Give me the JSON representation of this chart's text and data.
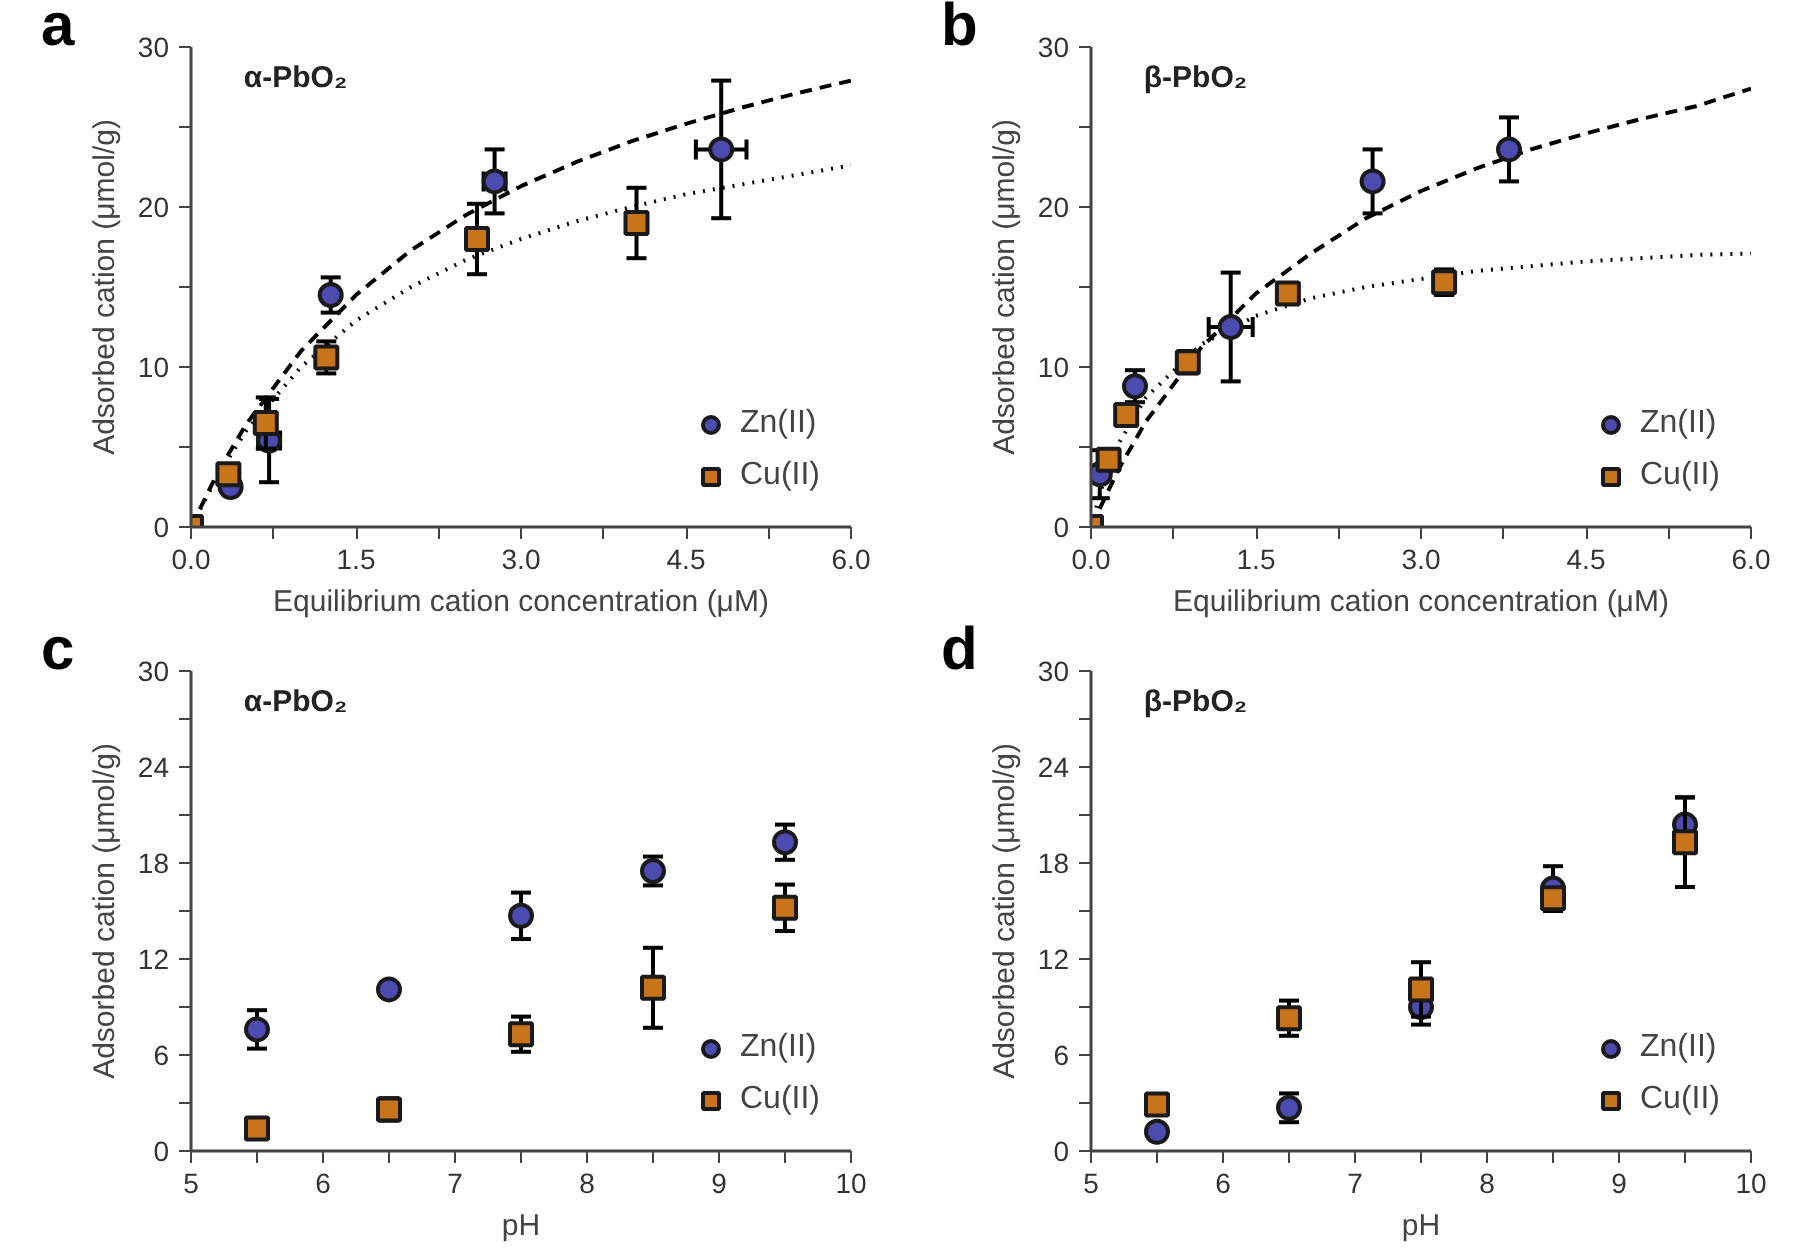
{
  "chart_data": [
    {
      "type": "scatter",
      "title": "α-PbO₂",
      "annotations": [
        "a"
      ],
      "xlabel": "Equilibrium cation concentration (μM)",
      "ylabel": "Adsorbed cation (μmol/g)",
      "xlim": [
        0,
        6
      ],
      "ylim": [
        0,
        30
      ],
      "xticks": [
        {
          "value": 0,
          "label": "0.0"
        },
        {
          "value": 0.75,
          "label": null
        },
        1.5,
        {
          "value": 2.25,
          "label": null
        },
        {
          "value": 3,
          "label": "3.0"
        },
        {
          "value": 3.75,
          "label": null
        },
        4.5,
        {
          "value": 5.25,
          "label": null
        },
        {
          "value": 6,
          "label": "6.0"
        }
      ],
      "yticks": [
        0,
        {
          "value": 5,
          "label": null
        },
        10,
        {
          "value": 15,
          "label": null
        },
        20,
        {
          "value": 25,
          "label": null
        },
        30
      ],
      "legend": "bottom right",
      "grid": false,
      "series": [
        {
          "type": "line",
          "color": "#000000",
          "line_style": "dashed",
          "marker": "none",
          "x": [
            0,
            0.25,
            0.5,
            1,
            1.5,
            2,
            2.5,
            3,
            3.5,
            4,
            4.5,
            5,
            5.5,
            6
          ],
          "values": [
            0,
            3.5,
            6.4,
            11.0,
            14.5,
            17.3,
            19.5,
            21.3,
            22.8,
            24.1,
            25.2,
            26.2,
            27.1,
            27.9
          ]
        },
        {
          "type": "line",
          "color": "#000000",
          "line_style": "dotted",
          "marker": "none",
          "x": [
            0,
            0.25,
            0.5,
            1,
            1.5,
            2,
            2.5,
            3,
            3.5,
            4,
            4.5,
            5,
            5.5,
            6
          ],
          "values": [
            0,
            3.3,
            6.0,
            10.0,
            12.9,
            15.0,
            16.7,
            18.0,
            19.1,
            20.0,
            20.8,
            21.4,
            22.0,
            22.6
          ]
        },
        {
          "name": "Zn(II)",
          "color": "#4b4bb0",
          "marker": "circle",
          "x": [
            0.36,
            0.71,
            1.27,
            2.76,
            4.82
          ],
          "values": [
            2.5,
            5.4,
            14.5,
            21.6,
            23.6
          ],
          "errors": [
            null,
            2.6,
            1.1,
            2.0,
            4.3
          ],
          "xerrors": [
            null,
            0.1,
            null,
            0.1,
            0.23
          ]
        },
        {
          "name": "Cu(II)",
          "color": "#c8741a",
          "marker": "square",
          "x": [
            0,
            0.34,
            0.68,
            1.23,
            2.6,
            4.05
          ],
          "values": [
            0,
            3.3,
            6.5,
            10.6,
            18.0,
            19.0
          ],
          "errors": [
            null,
            0.5,
            1.6,
            1.0,
            2.2,
            2.2
          ]
        }
      ]
    },
    {
      "type": "scatter",
      "title": "β-PbO₂",
      "annotations": [
        "b"
      ],
      "xlabel": "Equilibrium cation concentration (μM)",
      "ylabel": "Adsorbed cation (μmol/g)",
      "xlim": [
        0,
        6
      ],
      "ylim": [
        0,
        30
      ],
      "xticks": [
        {
          "value": 0,
          "label": "0.0"
        },
        {
          "value": 0.75,
          "label": null
        },
        1.5,
        {
          "value": 2.25,
          "label": null
        },
        {
          "value": 3,
          "label": "3.0"
        },
        {
          "value": 3.75,
          "label": null
        },
        4.5,
        {
          "value": 5.25,
          "label": null
        },
        {
          "value": 6,
          "label": "6.0"
        }
      ],
      "yticks": [
        0,
        {
          "value": 5,
          "label": null
        },
        10,
        {
          "value": 15,
          "label": null
        },
        20,
        {
          "value": 25,
          "label": null
        },
        30
      ],
      "legend": "bottom right",
      "grid": false,
      "series": [
        {
          "type": "line",
          "color": "#000000",
          "line_style": "dashed",
          "marker": "none",
          "x": [
            0,
            0.25,
            0.5,
            1,
            1.5,
            2,
            2.5,
            3,
            3.5,
            4,
            4.5,
            5,
            5.5,
            6
          ],
          "values": [
            0,
            3.6,
            6.6,
            11.2,
            14.6,
            17.1,
            19.3,
            21.0,
            22.4,
            23.6,
            24.6,
            25.5,
            26.3,
            27.4
          ]
        },
        {
          "type": "line",
          "color": "#000000",
          "line_style": "dotted",
          "marker": "none",
          "x": [
            0,
            0.1,
            0.25,
            0.5,
            1,
            1.5,
            2,
            2.5,
            3,
            3.5,
            4,
            4.5,
            5,
            5.5,
            6
          ],
          "values": [
            0,
            2.5,
            5.2,
            8.1,
            11.4,
            13.2,
            14.3,
            15.0,
            15.5,
            16.0,
            16.3,
            16.6,
            16.8,
            17.0,
            17.1
          ]
        },
        {
          "name": "Zn(II)",
          "color": "#4b4bb0",
          "marker": "circle",
          "x": [
            0.08,
            0.4,
            1.27,
            2.56,
            3.8
          ],
          "values": [
            3.3,
            8.8,
            12.5,
            21.6,
            23.6
          ],
          "errors": [
            1.5,
            1.0,
            3.4,
            2.0,
            2.0
          ],
          "xerrors": [
            null,
            null,
            0.2,
            null,
            null
          ]
        },
        {
          "name": "Cu(II)",
          "color": "#c8741a",
          "marker": "square",
          "x": [
            0,
            0.16,
            0.32,
            0.88,
            1.79,
            3.21
          ],
          "values": [
            0,
            4.2,
            7.0,
            10.3,
            14.6,
            15.3
          ],
          "errors": [
            null,
            null,
            null,
            0.7,
            null,
            0.8
          ]
        }
      ]
    },
    {
      "type": "scatter",
      "title": "α-PbO₂",
      "annotations": [
        "c"
      ],
      "xlabel": "pH",
      "ylabel": "Adsorbed cation (μmol/g)",
      "xlim": [
        5,
        10
      ],
      "ylim": [
        0,
        30
      ],
      "xticks": [
        5,
        {
          "value": 5.5,
          "label": null
        },
        6,
        {
          "value": 6.5,
          "label": null
        },
        7,
        {
          "value": 7.5,
          "label": null
        },
        8,
        {
          "value": 8.5,
          "label": null
        },
        9,
        {
          "value": 9.5,
          "label": null
        },
        10
      ],
      "yticks": [
        0,
        {
          "value": 3,
          "label": null
        },
        6,
        {
          "value": 9,
          "label": null
        },
        12,
        {
          "value": 15,
          "label": null
        },
        18,
        {
          "value": 21,
          "label": null
        },
        24,
        {
          "value": 27,
          "label": null
        },
        30
      ],
      "legend": "bottom right",
      "grid": false,
      "series": [
        {
          "name": "Zn(II)",
          "color": "#4b4bb0",
          "marker": "circle",
          "x": [
            5.5,
            6.5,
            7.5,
            8.5,
            9.5
          ],
          "values": [
            7.6,
            10.1,
            14.7,
            17.5,
            19.3
          ],
          "errors": [
            1.2,
            null,
            1.45,
            0.9,
            1.1
          ]
        },
        {
          "name": "Cu(II)",
          "color": "#c8741a",
          "marker": "square",
          "x": [
            5.5,
            6.5,
            7.5,
            8.5,
            9.5
          ],
          "values": [
            1.4,
            2.6,
            7.3,
            10.2,
            15.2
          ],
          "errors": [
            null,
            0.7,
            1.1,
            2.5,
            1.45
          ]
        }
      ]
    },
    {
      "type": "scatter",
      "title": "β-PbO₂",
      "annotations": [
        "d"
      ],
      "xlabel": "pH",
      "ylabel": "Adsorbed cation (μmol/g)",
      "xlim": [
        5,
        10
      ],
      "ylim": [
        0,
        30
      ],
      "xticks": [
        5,
        {
          "value": 5.5,
          "label": null
        },
        6,
        {
          "value": 6.5,
          "label": null
        },
        7,
        {
          "value": 7.5,
          "label": null
        },
        8,
        {
          "value": 8.5,
          "label": null
        },
        9,
        {
          "value": 9.5,
          "label": null
        },
        10
      ],
      "yticks": [
        0,
        {
          "value": 3,
          "label": null
        },
        6,
        {
          "value": 9,
          "label": null
        },
        12,
        {
          "value": 15,
          "label": null
        },
        18,
        {
          "value": 21,
          "label": null
        },
        24,
        {
          "value": 27,
          "label": null
        },
        30
      ],
      "legend": "bottom right",
      "grid": false,
      "series": [
        {
          "name": "Zn(II)",
          "color": "#4b4bb0",
          "marker": "circle",
          "x": [
            5.5,
            6.5,
            7.5,
            8.5,
            9.5
          ],
          "values": [
            1.2,
            2.7,
            9.0,
            16.4,
            20.4
          ],
          "errors": [
            null,
            0.9,
            1.1,
            1.4,
            1.7
          ]
        },
        {
          "name": "Cu(II)",
          "color": "#c8741a",
          "marker": "square",
          "x": [
            5.5,
            6.5,
            7.5,
            8.5,
            9.5
          ],
          "values": [
            2.9,
            8.3,
            10.1,
            15.8,
            19.3
          ],
          "errors": [
            0.5,
            1.1,
            1.7,
            0.6,
            2.8
          ]
        }
      ]
    }
  ]
}
